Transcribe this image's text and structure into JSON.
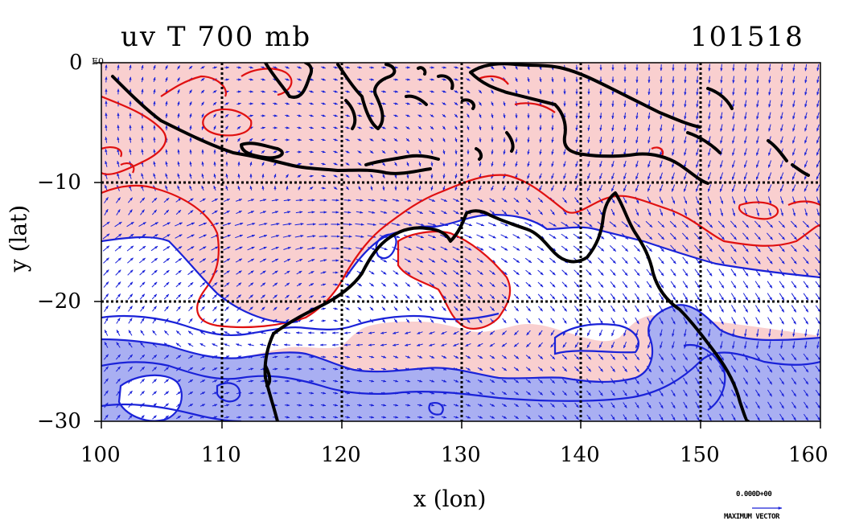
{
  "title_left": "uv T 700 mb",
  "title_right": "101518",
  "corner_label": "E0",
  "xlabel": "x (lon)",
  "ylabel": "y (lat)",
  "x_ticks": [
    "100",
    "110",
    "120",
    "130",
    "140",
    "150",
    "160"
  ],
  "y_ticks": [
    "0",
    "−10",
    "−20",
    "−30"
  ],
  "vector_legend": {
    "value": "0.000D+00",
    "label": "MAXIMUM VECTOR"
  },
  "colors": {
    "warm_fill": "#f9cfcf",
    "cool_fill": "#a9aff2",
    "warm_contour": "#e01010",
    "cool_contour": "#1a22d8",
    "vectors": "#1a22d8",
    "coast": "#000000"
  },
  "chart_data": {
    "type": "map",
    "x_range": [
      100,
      160
    ],
    "y_range": [
      -30,
      0
    ],
    "x_gridlines": [
      110,
      120,
      130,
      140,
      150
    ],
    "y_gridlines": [
      -10,
      -20
    ],
    "fields": [
      "u/v wind vectors",
      "temperature contours"
    ],
    "level": "700 mb"
  }
}
